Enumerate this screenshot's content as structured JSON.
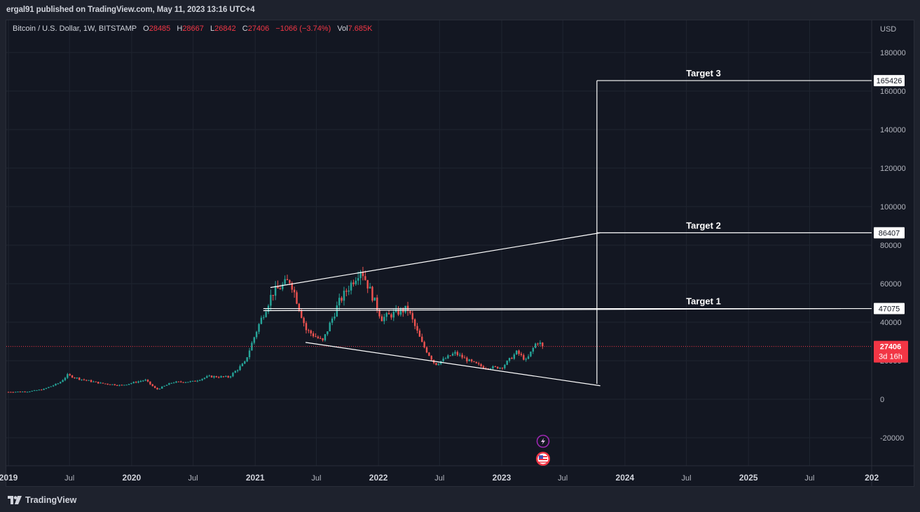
{
  "publish_line": "ergal91 published on TradingView.com, May 11, 2023 13:16 UTC+4",
  "legend": {
    "symbol": "Bitcoin / U.S. Dollar, 1W, BITSTAMP",
    "open_label": "O",
    "open": "28485",
    "high_label": "H",
    "high": "28667",
    "low_label": "L",
    "low": "26842",
    "close_label": "C",
    "close": "27406",
    "change": "−1066 (−3.74%)",
    "vol_label": "Vol",
    "vol": "7.685K"
  },
  "currency": "USD",
  "price_tag": {
    "price": "27406",
    "countdown": "3d 16h"
  },
  "brand": "TradingView",
  "colors": {
    "up": "#26a69a",
    "down": "#ef5350",
    "bg": "#131722",
    "grid": "#1f2430",
    "text": "#b2b5be",
    "line": "#ffffff"
  },
  "icons": [
    "lightning-icon",
    "us-flag-icon",
    "tradingview-logo-icon"
  ],
  "chart_data": {
    "type": "candlestick",
    "y_axis": {
      "min": -30000,
      "max": 190000,
      "ticks": [
        180000,
        160000,
        140000,
        120000,
        100000,
        80000,
        60000,
        40000,
        20000,
        0,
        -20000
      ]
    },
    "x_axis": {
      "ticks": [
        "2019",
        "Jul",
        "2020",
        "Jul",
        "2021",
        "Jul",
        "2022",
        "Jul",
        "2023",
        "Jul",
        "2024",
        "Jul",
        "2025",
        "Jul",
        "202"
      ]
    },
    "targets": [
      {
        "label": "Target 1",
        "value": 47075
      },
      {
        "label": "Target 2",
        "value": 86407
      },
      {
        "label": "Target 3",
        "value": 165426
      }
    ],
    "price_closes": [
      [
        "2019-01-01",
        3800
      ],
      [
        "2019-03-01",
        4000
      ],
      [
        "2019-04-15",
        5200
      ],
      [
        "2019-06-01",
        8500
      ],
      [
        "2019-06-25",
        12500
      ],
      [
        "2019-08-01",
        10500
      ],
      [
        "2019-10-01",
        8300
      ],
      [
        "2019-12-01",
        7200
      ],
      [
        "2020-02-10",
        10000
      ],
      [
        "2020-03-15",
        5000
      ],
      [
        "2020-05-01",
        8800
      ],
      [
        "2020-07-01",
        9200
      ],
      [
        "2020-08-15",
        11800
      ],
      [
        "2020-10-15",
        11500
      ],
      [
        "2020-12-01",
        19000
      ],
      [
        "2021-01-10",
        38000
      ],
      [
        "2021-02-20",
        55000
      ],
      [
        "2021-04-15",
        62000
      ],
      [
        "2021-06-01",
        36000
      ],
      [
        "2021-07-20",
        30000
      ],
      [
        "2021-09-05",
        50000
      ],
      [
        "2021-11-10",
        68000
      ],
      [
        "2022-01-10",
        42000
      ],
      [
        "2022-03-28",
        47000
      ],
      [
        "2022-05-10",
        29000
      ],
      [
        "2022-06-18",
        18000
      ],
      [
        "2022-08-15",
        24000
      ],
      [
        "2022-09-30",
        19500
      ],
      [
        "2022-11-10",
        16500
      ],
      [
        "2023-01-01",
        16500
      ],
      [
        "2023-02-15",
        24500
      ],
      [
        "2023-03-15",
        20000
      ],
      [
        "2023-04-15",
        30000
      ],
      [
        "2023-05-08",
        27406
      ]
    ],
    "trendlines": [
      {
        "from": [
          "2021-02-15",
          58000
        ],
        "to": [
          "2023-10-20",
          86407
        ]
      },
      {
        "from": [
          "2021-05-30",
          29500
        ],
        "to": [
          "2023-10-20",
          7000
        ]
      },
      {
        "from": [
          "2021-01-25",
          46000
        ],
        "to": [
          "2025-10-01",
          47075
        ]
      }
    ],
    "target_vertical": {
      "date": "2023-10-10",
      "from": 8000,
      "to": 165426
    }
  }
}
